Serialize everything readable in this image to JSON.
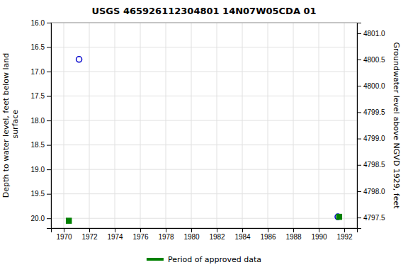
{
  "chart_data": {
    "type": "scatter",
    "title": "USGS 465926112304801 14N07W05CDA 01",
    "ylabel": "Depth to water level, feet below land\n surface",
    "y2label": "Groundwater level above NGVD 1929, feet",
    "xlim": [
      1969,
      1993
    ],
    "xticks": [
      1970,
      1972,
      1974,
      1976,
      1978,
      1980,
      1982,
      1984,
      1986,
      1988,
      1990,
      1992
    ],
    "ylim": [
      20.2,
      16.0
    ],
    "yticks": [
      {
        "value": 16.0,
        "label": "16.0"
      },
      16.5,
      {
        "value": 17.0,
        "label": "17.0"
      },
      17.5,
      {
        "value": 18.0,
        "label": "18.0"
      },
      18.5,
      {
        "value": 19.0,
        "label": "19.0"
      },
      19.5,
      {
        "value": 20.0,
        "label": "20.0"
      }
    ],
    "y2lim": [
      4797.3,
      4801.2
    ],
    "y2ticks": [
      {
        "value": 4801.0,
        "label": "4801.0"
      },
      4800.5,
      {
        "value": 4800.0,
        "label": "4800.0"
      },
      4799.5,
      {
        "value": 4799.0,
        "label": "4799.0"
      },
      4798.5,
      {
        "value": 4798.0,
        "label": "4798.0"
      },
      4797.5
    ],
    "grid": true,
    "legend": "bottom",
    "series": [
      {
        "color": "#0000cc",
        "marker": "circle-open",
        "x": [
          1971.2,
          1991.5
        ],
        "values": [
          16.75,
          19.97
        ]
      },
      {
        "name": "Period of approved data",
        "color": "#008000",
        "marker": "square",
        "x": [
          1970.4,
          1991.6
        ],
        "values": [
          20.05,
          19.97
        ]
      }
    ]
  }
}
